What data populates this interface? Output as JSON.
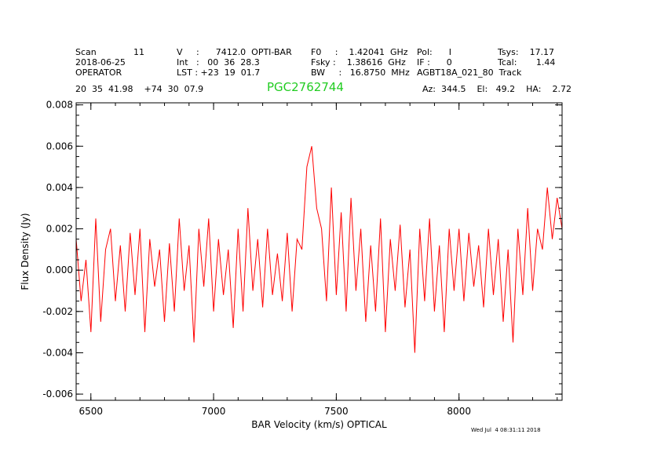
{
  "header": {
    "row1": [
      {
        "text": "Scan"
      },
      {
        "text": "11"
      },
      {
        "text": "V     :      7412.0  OPTI-BAR"
      },
      {
        "text": "F0     :    1.42041  GHz"
      },
      {
        "text": "Pol:      I"
      },
      {
        "text": "Tsys:    17.17"
      }
    ],
    "row2": [
      {
        "text": "2018-06-25"
      },
      {
        "text": "Int   :   00  36  28.3"
      },
      {
        "text": "Fsky :    1.38616  GHz"
      },
      {
        "text": "IF :      0"
      },
      {
        "text": "Tcal:       1.44"
      }
    ],
    "row3": [
      {
        "text": "OPERATOR"
      },
      {
        "text": "LST : +23  19  01.7"
      },
      {
        "text": "BW     :   16.8750  MHz"
      },
      {
        "text": "AGBT18A_021_80  Track"
      }
    ],
    "coords": "20  35  41.98    +74  30  07.9",
    "source": "PGC2762744",
    "azel": "Az:  344.5    El:   49.2    HA:    2.72",
    "timestamp": "Wed Jul  4 08:31:11 2018"
  },
  "chart_data": {
    "type": "line",
    "xlabel": "BAR Velocity (km/s) OPTICAL",
    "ylabel": "Flux Density (Jy)",
    "xlim": [
      6440,
      8420
    ],
    "ylim": [
      -0.0063,
      0.0081
    ],
    "xticks": [
      6500,
      7000,
      7500,
      8000
    ],
    "xtick_labels": [
      "6500",
      "7000",
      "7500",
      "8000"
    ],
    "yticks": [
      -0.006,
      -0.004,
      -0.002,
      0.0,
      0.002,
      0.004,
      0.006,
      0.008
    ],
    "ytick_labels": [
      "-0.006",
      "-0.004",
      "-0.002",
      "0.000",
      "0.002",
      "0.004",
      "0.006",
      "0.008"
    ],
    "grid": false,
    "line_color": "#ff0000",
    "series": [
      {
        "x": [
          6440,
          6460,
          6480,
          6500,
          6520,
          6540,
          6560,
          6580,
          6600,
          6620,
          6640,
          6660,
          6680,
          6700,
          6720,
          6740,
          6760,
          6780,
          6800,
          6820,
          6840,
          6860,
          6880,
          6900,
          6920,
          6940,
          6960,
          6980,
          7000,
          7020,
          7040,
          7060,
          7080,
          7100,
          7120,
          7140,
          7160,
          7180,
          7200,
          7220,
          7240,
          7260,
          7280,
          7300,
          7320,
          7340,
          7360,
          7380,
          7400,
          7420,
          7440,
          7460,
          7480,
          7500,
          7520,
          7540,
          7560,
          7580,
          7600,
          7620,
          7640,
          7660,
          7680,
          7700,
          7720,
          7740,
          7760,
          7780,
          7800,
          7820,
          7840,
          7860,
          7880,
          7900,
          7920,
          7940,
          7960,
          7980,
          8000,
          8020,
          8040,
          8060,
          8080,
          8100,
          8120,
          8140,
          8160,
          8180,
          8200,
          8220,
          8240,
          8260,
          8280,
          8300,
          8320,
          8340,
          8360,
          8380,
          8400,
          8420
        ],
        "values": [
          0.0015,
          -0.0015,
          0.0005,
          -0.003,
          0.0025,
          -0.0025,
          0.001,
          0.002,
          -0.0015,
          0.0012,
          -0.002,
          0.0018,
          -0.0012,
          0.002,
          -0.003,
          0.0015,
          -0.0008,
          0.001,
          -0.0025,
          0.0013,
          -0.002,
          0.0025,
          -0.001,
          0.0012,
          -0.0035,
          0.002,
          -0.0008,
          0.0025,
          -0.002,
          0.0015,
          -0.0012,
          0.001,
          -0.0028,
          0.002,
          -0.002,
          0.003,
          -0.001,
          0.0015,
          -0.0018,
          0.002,
          -0.0012,
          0.0008,
          -0.0015,
          0.0018,
          -0.002,
          0.0015,
          0.001,
          0.005,
          0.006,
          0.003,
          0.002,
          -0.0015,
          0.004,
          -0.0012,
          0.0028,
          -0.002,
          0.0035,
          -0.001,
          0.002,
          -0.0025,
          0.0012,
          -0.002,
          0.0025,
          -0.003,
          0.0015,
          -0.001,
          0.0022,
          -0.0018,
          0.001,
          -0.004,
          0.002,
          -0.0015,
          0.0025,
          -0.002,
          0.0012,
          -0.003,
          0.002,
          -0.001,
          0.002,
          -0.0015,
          0.0018,
          -0.0008,
          0.0012,
          -0.0018,
          0.002,
          -0.0012,
          0.0015,
          -0.0025,
          0.001,
          -0.0035,
          0.002,
          -0.0012,
          0.003,
          -0.001,
          0.002,
          0.001,
          0.004,
          0.0015,
          0.0035,
          0.002
        ]
      }
    ]
  }
}
